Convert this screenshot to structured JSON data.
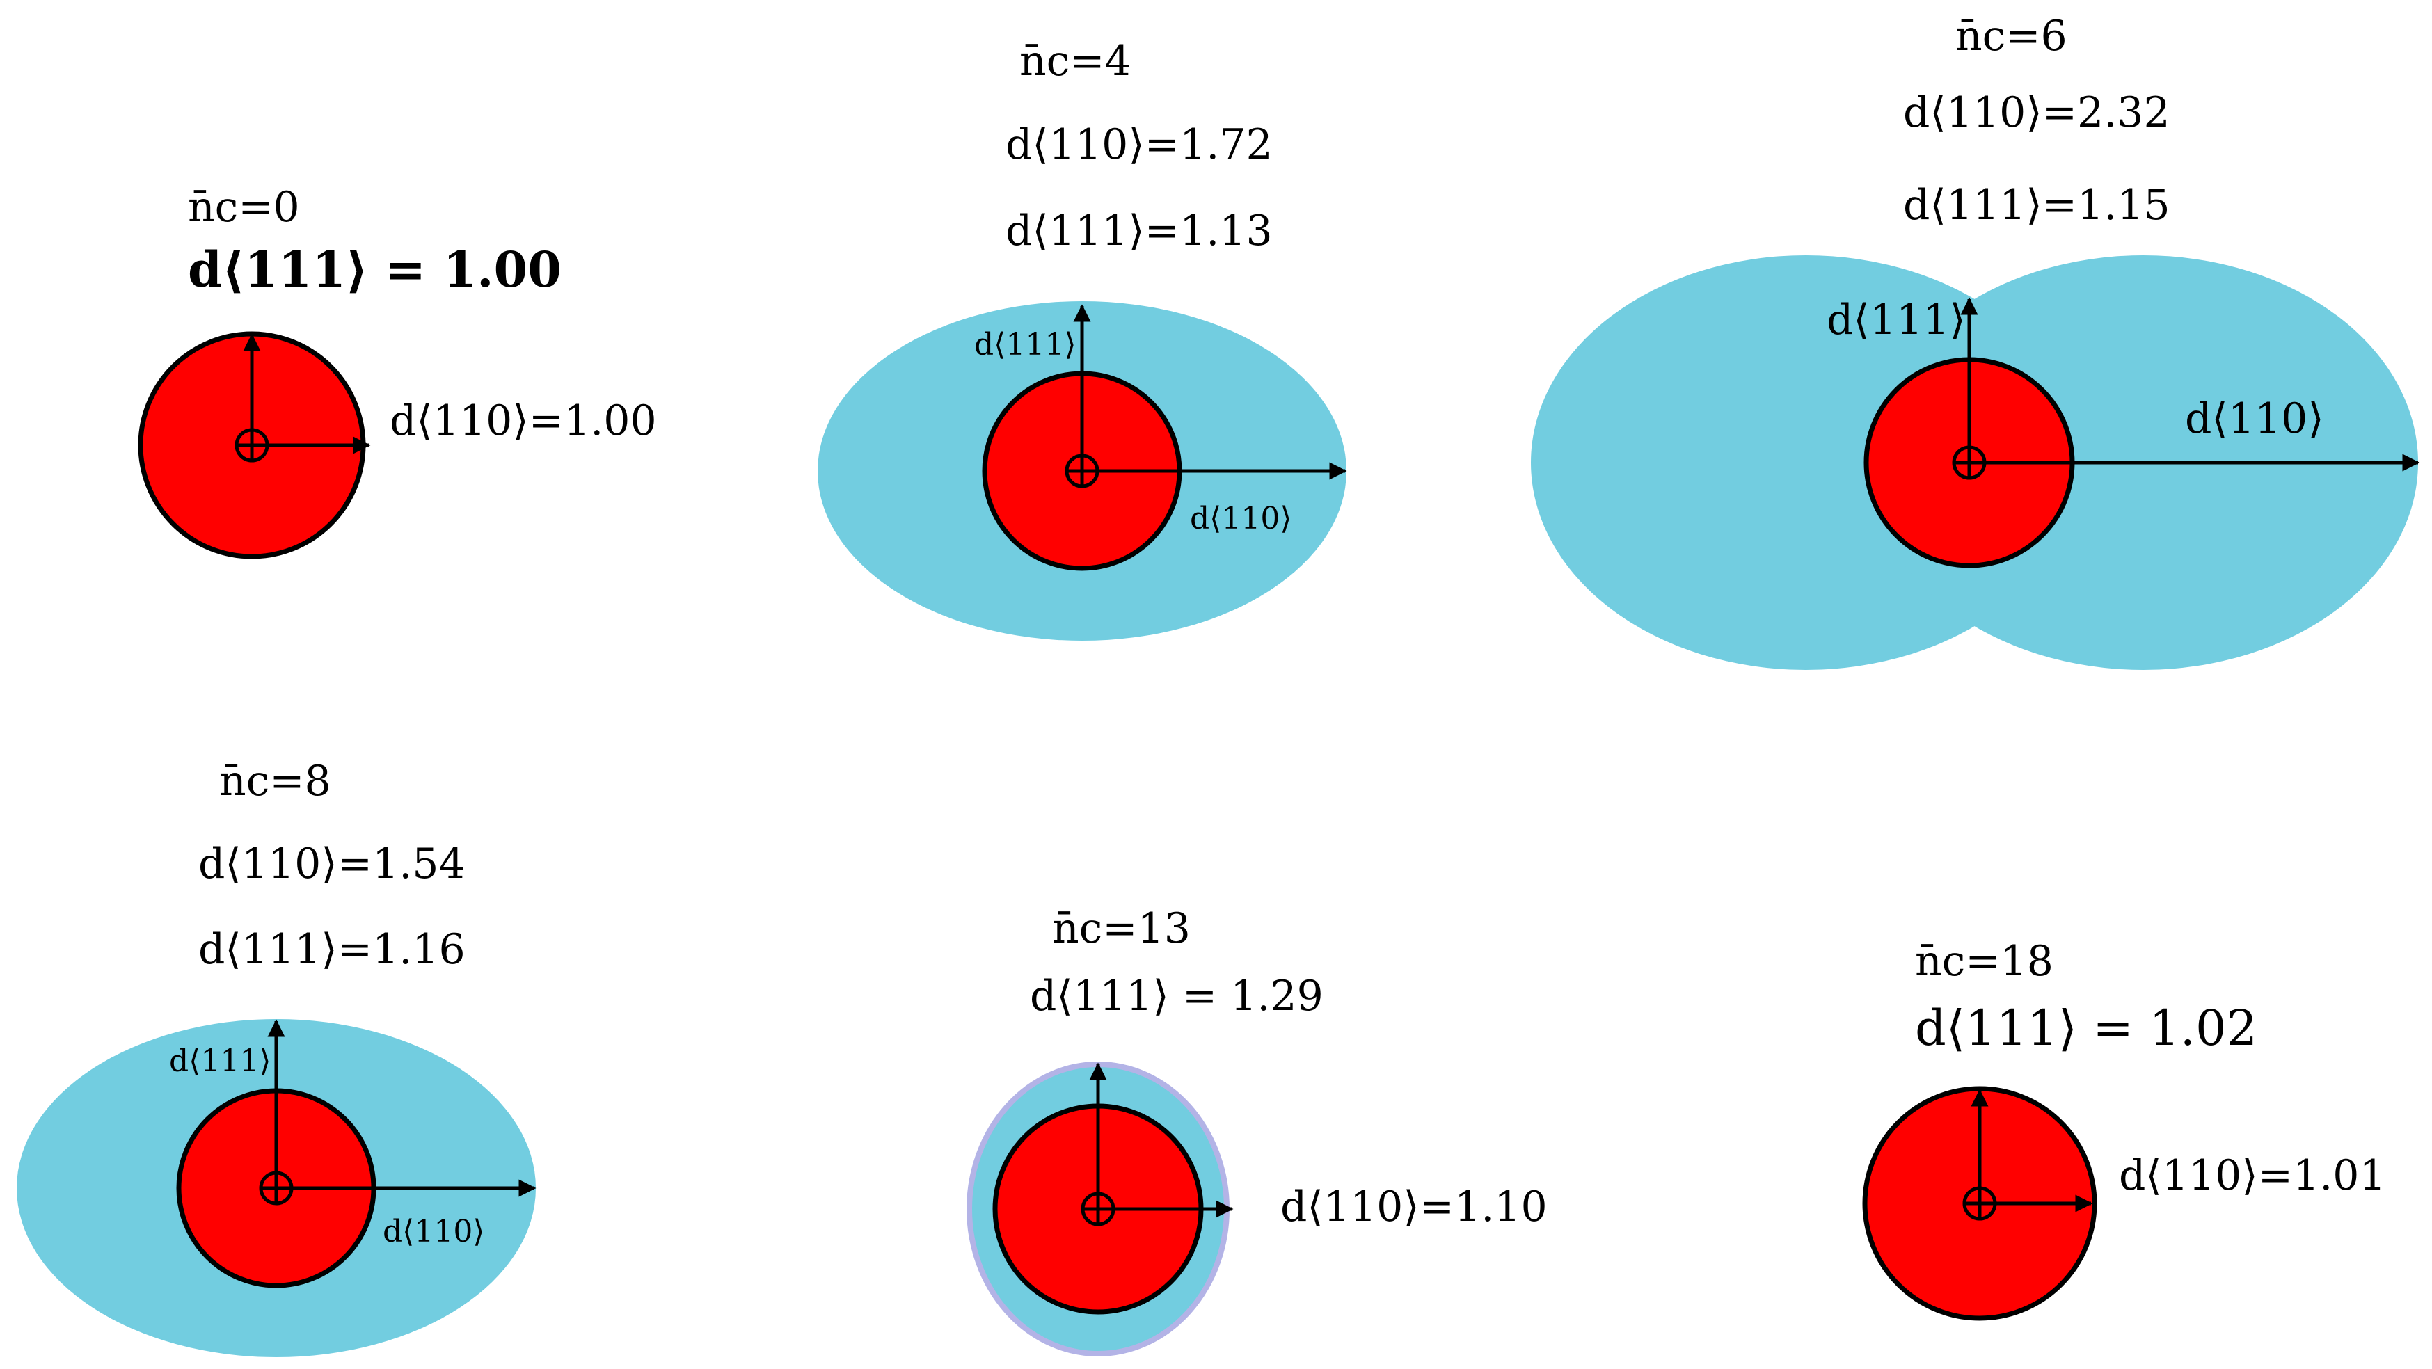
{
  "colors": {
    "core": "#ff0000",
    "halo": "#72cde0",
    "halo_edge": "#b3b3e6",
    "outline": "#000000"
  },
  "panels": [
    {
      "nc_label": "n̄c=0",
      "d111_label": "d⟨111⟩ = 1.00",
      "d110_label": "d⟨110⟩=1.00"
    },
    {
      "nc_label": "n̄c=4",
      "d110_label": "d⟨110⟩=1.72",
      "d111_label": "d⟨111⟩=1.13",
      "d111_axis_label": "d⟨111⟩",
      "d110_axis_label": "d⟨110⟩"
    },
    {
      "nc_label": "n̄c=6",
      "d110_label": "d⟨110⟩=2.32",
      "d111_label": "d⟨111⟩=1.15",
      "d111_axis_label": "d⟨111⟩",
      "d110_axis_label": "d⟨110⟩"
    },
    {
      "nc_label": "n̄c=8",
      "d110_label": "d⟨110⟩=1.54",
      "d111_label": "d⟨111⟩=1.16",
      "d111_axis_label": "d⟨111⟩",
      "d110_axis_label": "d⟨110⟩"
    },
    {
      "nc_label": "n̄c=13",
      "d111_label": "d⟨111⟩ = 1.29",
      "d110_label": "d⟨110⟩=1.10"
    },
    {
      "nc_label": "n̄c=18",
      "d111_label": "d⟨111⟩ = 1.02",
      "d110_label": "d⟨110⟩=1.01"
    }
  ]
}
